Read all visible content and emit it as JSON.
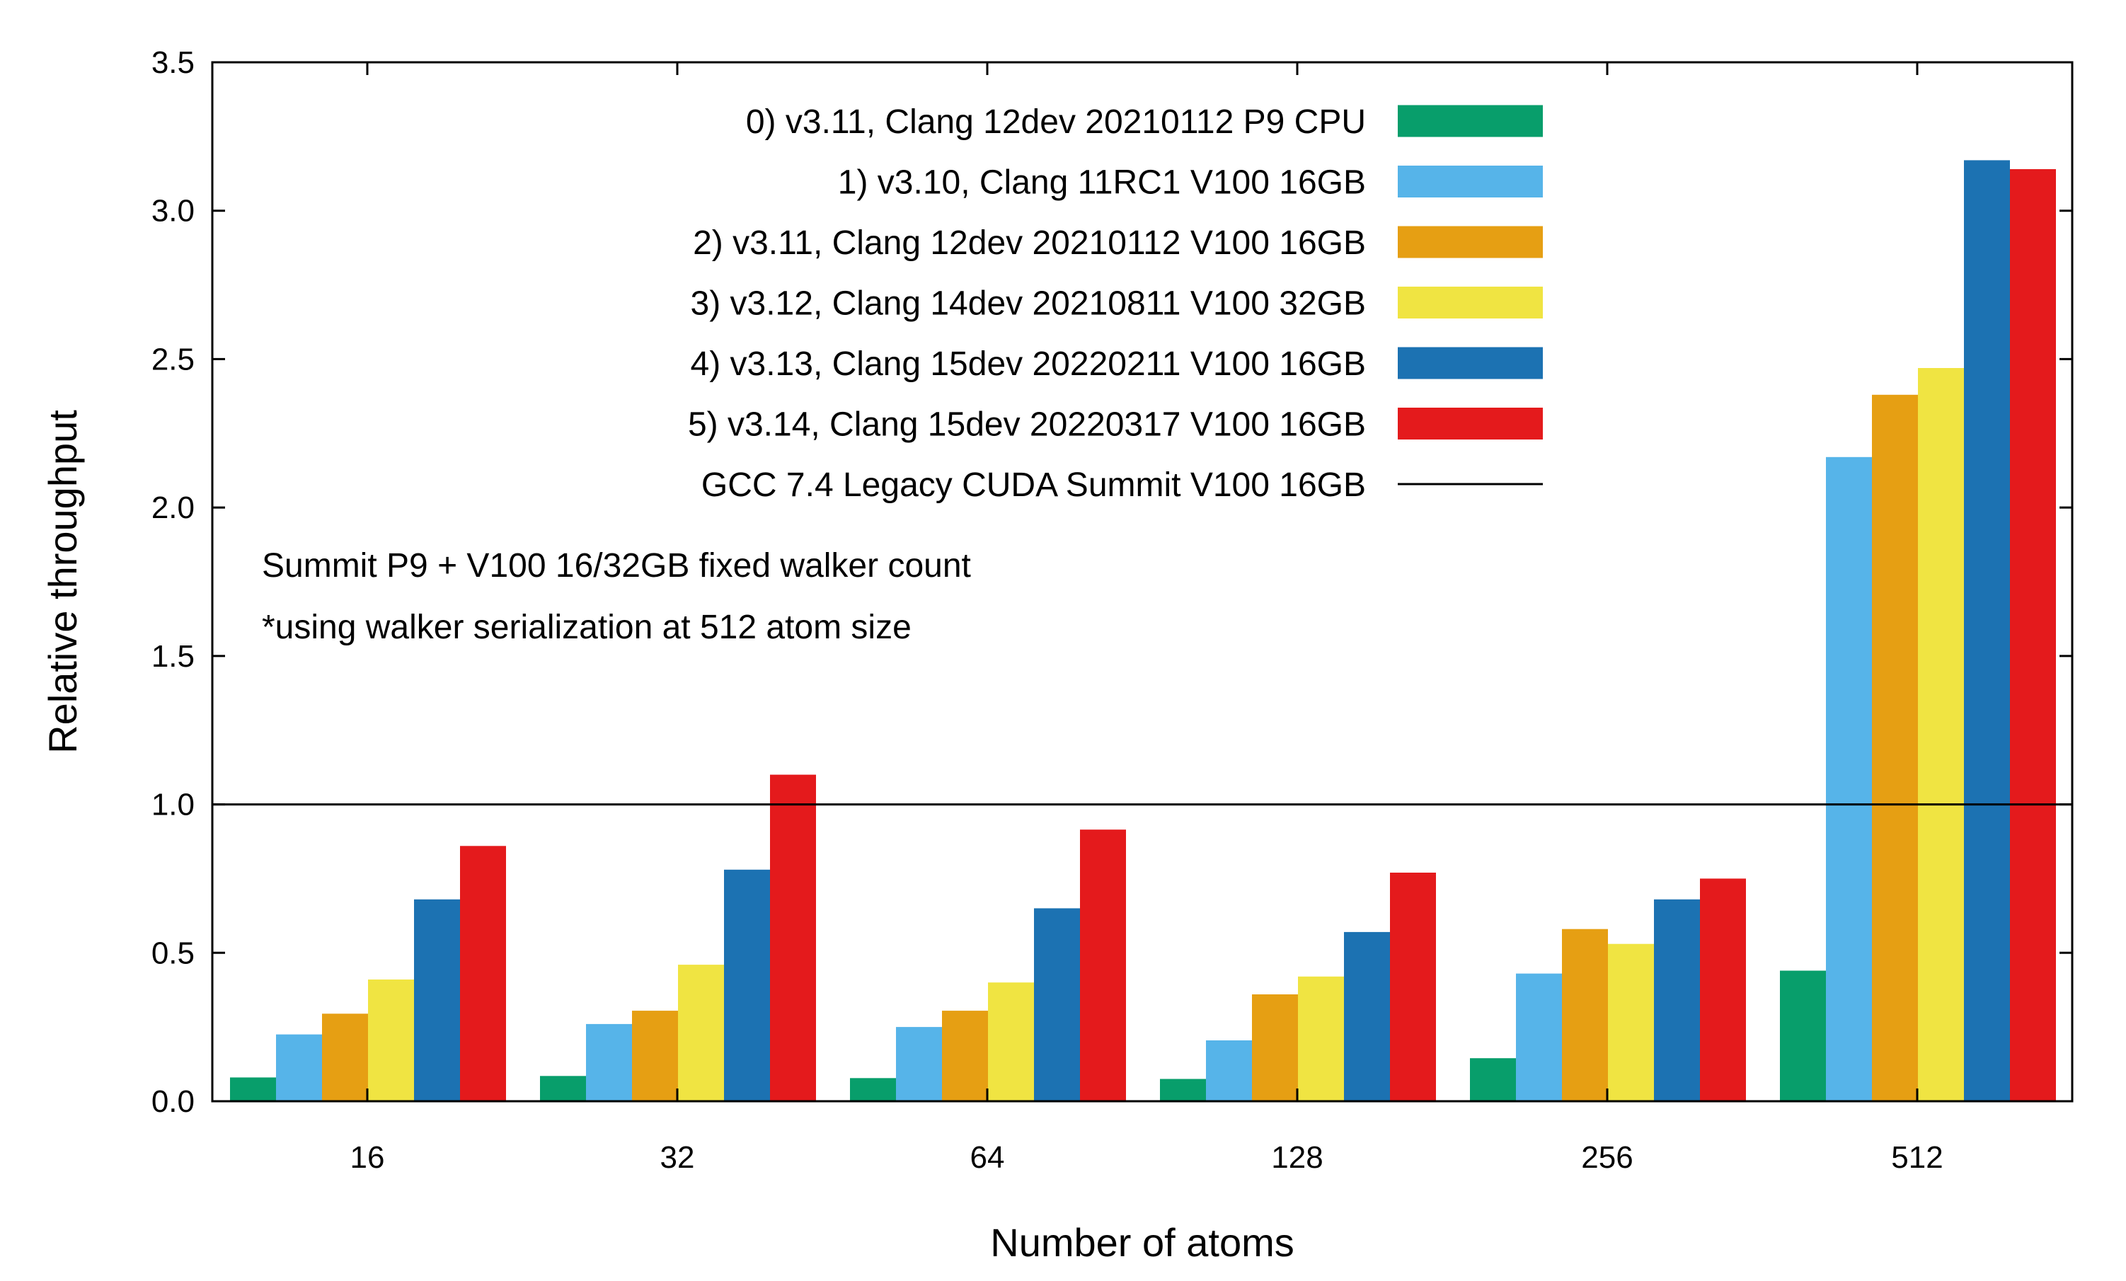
{
  "chart_data": {
    "type": "bar",
    "title": "",
    "xlabel": "Number of atoms",
    "ylabel": "Relative throughput",
    "categories": [
      "16",
      "32",
      "64",
      "128",
      "256",
      "512"
    ],
    "ylim": [
      0,
      3.5
    ],
    "yticks": [
      0.0,
      0.5,
      1.0,
      1.5,
      2.0,
      2.5,
      3.0,
      3.5
    ],
    "ytick_labels": [
      "0.0",
      "0.5",
      "1.0",
      "1.5",
      "2.0",
      "2.5",
      "3.0",
      "3.5"
    ],
    "grid": false,
    "legend_position": "top-right",
    "series": [
      {
        "name": "0) v3.11, Clang 12dev 20210112 P9 CPU",
        "color": "#089e6b",
        "values": [
          0.08,
          0.085,
          0.078,
          0.075,
          0.145,
          0.44
        ]
      },
      {
        "name": "1) v3.10, Clang 11RC1 V100 16GB",
        "color": "#56b4e9",
        "values": [
          0.225,
          0.26,
          0.25,
          0.205,
          0.43,
          2.17
        ]
      },
      {
        "name": "2) v3.11, Clang 12dev 20210112 V100 16GB",
        "color": "#e69f13",
        "values": [
          0.295,
          0.305,
          0.305,
          0.36,
          0.58,
          2.38
        ]
      },
      {
        "name": "3) v3.12, Clang 14dev 20210811 V100 32GB",
        "color": "#f0e442",
        "values": [
          0.41,
          0.46,
          0.4,
          0.42,
          0.53,
          2.47
        ]
      },
      {
        "name": "4) v3.13, Clang 15dev 20220211 V100 16GB",
        "color": "#1c72b2",
        "values": [
          0.68,
          0.78,
          0.65,
          0.57,
          0.68,
          3.17
        ]
      },
      {
        "name": "5) v3.14, Clang 15dev 20220317 V100 16GB",
        "color": "#e41a1c",
        "values": [
          0.86,
          1.1,
          0.915,
          0.77,
          0.75,
          3.14
        ]
      }
    ],
    "reference_line": {
      "name": "GCC 7.4 Legacy CUDA Summit V100 16GB",
      "value": 1.0,
      "color": "#000000"
    },
    "annotations": [
      "Summit P9 + V100 16/32GB fixed walker count",
      "*using walker serialization at 512 atom size"
    ]
  }
}
